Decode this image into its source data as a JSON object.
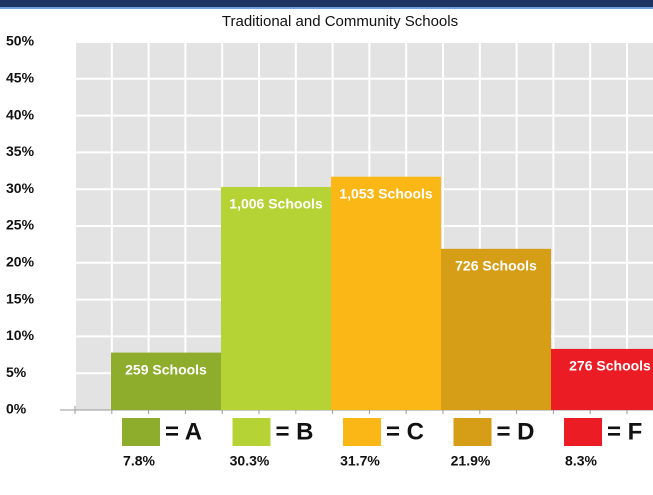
{
  "chart_data": {
    "type": "bar",
    "title": "Traditional and Community Schools",
    "categories": [
      "= A",
      "= B",
      "= C",
      "= D",
      "= F"
    ],
    "values": [
      7.8,
      30.3,
      31.7,
      21.9,
      8.3
    ],
    "value_labels": [
      "7.8%",
      "30.3%",
      "31.7%",
      "21.9%",
      "8.3%"
    ],
    "schools": {
      "values": [
        259,
        1006,
        1053,
        726,
        276
      ],
      "value_labels": [
        "259 Schools",
        "1,006 Schools",
        "1,053 Schools",
        "726 Schools",
        "276 Schools"
      ]
    },
    "colors": [
      "#8fad2c",
      "#b5d334",
      "#fbb715",
      "#d59e16",
      "#ec1c24"
    ],
    "ylim": [
      0,
      50
    ],
    "yticks": [
      {
        "value": 0,
        "label": "0%"
      },
      {
        "value": 5,
        "label": "5%"
      },
      {
        "value": 10,
        "label": "10%"
      },
      {
        "value": 15,
        "label": "15%"
      },
      {
        "value": 20,
        "label": "20%"
      },
      {
        "value": 25,
        "label": "25%"
      },
      {
        "value": 30,
        "label": "30%"
      },
      {
        "value": 35,
        "label": "35%"
      },
      {
        "value": 40,
        "label": "40%"
      },
      {
        "value": 45,
        "label": "45%"
      },
      {
        "value": 50,
        "label": "50%"
      }
    ],
    "grid": true
  }
}
